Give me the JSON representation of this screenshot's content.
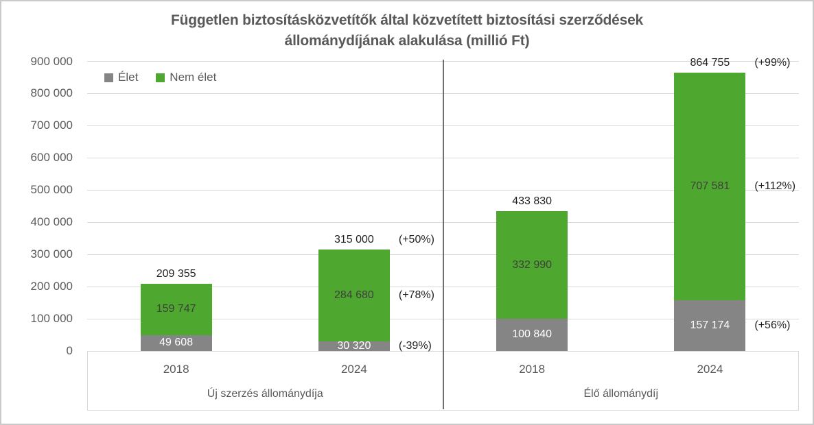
{
  "chart_data": {
    "type": "bar",
    "stacked": true,
    "title": "Független biztosításközvetítők által közvetített biztosítási szerződések állománydíjának alakulása (millió Ft)",
    "title_lines": [
      "Független biztosításközvetítők által közvetített biztosítási szerződések",
      "állománydíjának alakulása (millió Ft)"
    ],
    "unit": "millió Ft",
    "ylim": [
      0,
      900000
    ],
    "yticks": [
      0,
      100000,
      200000,
      300000,
      400000,
      500000,
      600000,
      700000,
      800000,
      900000
    ],
    "ytick_labels": [
      "0",
      "100 000",
      "200 000",
      "300 000",
      "400 000",
      "500 000",
      "600 000",
      "700 000",
      "800 000",
      "900 000"
    ],
    "grid": true,
    "legend_position": "top-left",
    "series": [
      {
        "key": "elet",
        "name": "Élet",
        "color": "#858585"
      },
      {
        "key": "nem_elet",
        "name": "Nem élet",
        "color": "#4EA72E"
      }
    ],
    "groups": [
      {
        "label": "Új szerzés állománydíja",
        "bars": [
          {
            "category": "2018",
            "values": {
              "elet": 49608,
              "nem_elet": 159747
            },
            "total": 209355,
            "labels": {
              "elet": "49 608",
              "nem_elet": "159 747",
              "total": "209 355"
            }
          },
          {
            "category": "2024",
            "values": {
              "elet": 30320,
              "nem_elet": 284680
            },
            "total": 315000,
            "labels": {
              "elet": "30 320",
              "nem_elet": "284 680",
              "total": "315 000"
            },
            "pct_labels": {
              "elet": "(-39%)",
              "nem_elet": "(+78%)",
              "total": "(+50%)"
            }
          }
        ]
      },
      {
        "label": "Élő állománydíj",
        "bars": [
          {
            "category": "2018",
            "values": {
              "elet": 100840,
              "nem_elet": 332990
            },
            "total": 433830,
            "labels": {
              "elet": "100 840",
              "nem_elet": "332 990",
              "total": "433 830"
            }
          },
          {
            "category": "2024",
            "values": {
              "elet": 157174,
              "nem_elet": 707581
            },
            "total": 864755,
            "labels": {
              "elet": "157 174",
              "nem_elet": "707 581",
              "total": "864 755"
            },
            "pct_labels": {
              "elet": "(+56%)",
              "nem_elet": "(+112%)",
              "total": "(+99%)"
            }
          }
        ]
      }
    ],
    "colors": {
      "grid": "#d9d9d9",
      "divider": "#6f6f6f",
      "axis_text": "#595959",
      "label_dark": "#1f1f1f",
      "label_on_green": "#3f3f3f",
      "label_on_gray": "#ffffff"
    }
  }
}
